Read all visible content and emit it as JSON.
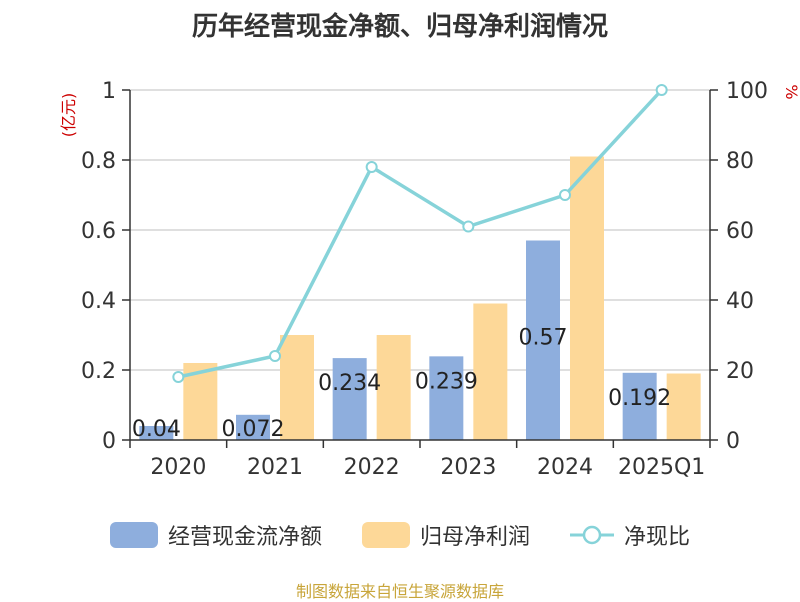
{
  "chart_data": {
    "type": "bar",
    "title": "历年经营现金净额、归母净利润情况",
    "categories": [
      "2020",
      "2021",
      "2022",
      "2023",
      "2024",
      "2025Q1"
    ],
    "series": [
      {
        "name": "经营现金流净额",
        "type": "bar",
        "axis": "left",
        "color": "#8eaedd",
        "values": [
          0.04,
          0.072,
          0.234,
          0.239,
          0.57,
          0.192
        ],
        "data_labels": [
          "0.04",
          "0.072",
          "0.234",
          "0.239",
          "0.57",
          "0.192"
        ]
      },
      {
        "name": "归母净利润",
        "type": "bar",
        "axis": "left",
        "color": "#fdd898",
        "values": [
          0.22,
          0.3,
          0.3,
          0.39,
          0.81,
          0.19
        ]
      },
      {
        "name": "净现比",
        "type": "line",
        "axis": "right",
        "color": "#86d3d9",
        "values": [
          18,
          24,
          78,
          61,
          70,
          100
        ]
      }
    ],
    "y_left": {
      "label": "(亿元)",
      "range": [
        0,
        1
      ],
      "ticks": [
        "0",
        "0.2",
        "0.4",
        "0.6",
        "0.8",
        "1"
      ],
      "tick_values": [
        0,
        0.2,
        0.4,
        0.6,
        0.8,
        1
      ]
    },
    "y_right": {
      "label": "%",
      "range": [
        0,
        100
      ],
      "ticks": [
        "0",
        "20",
        "40",
        "60",
        "80",
        "100"
      ],
      "tick_values": [
        0,
        20,
        40,
        60,
        80,
        100
      ]
    },
    "grid": true,
    "legend_position": "bottom",
    "label_color": "#cc0000",
    "axis_color": "#333333",
    "grid_color": "#cccccc"
  },
  "source": "制图数据来自恒生聚源数据库"
}
